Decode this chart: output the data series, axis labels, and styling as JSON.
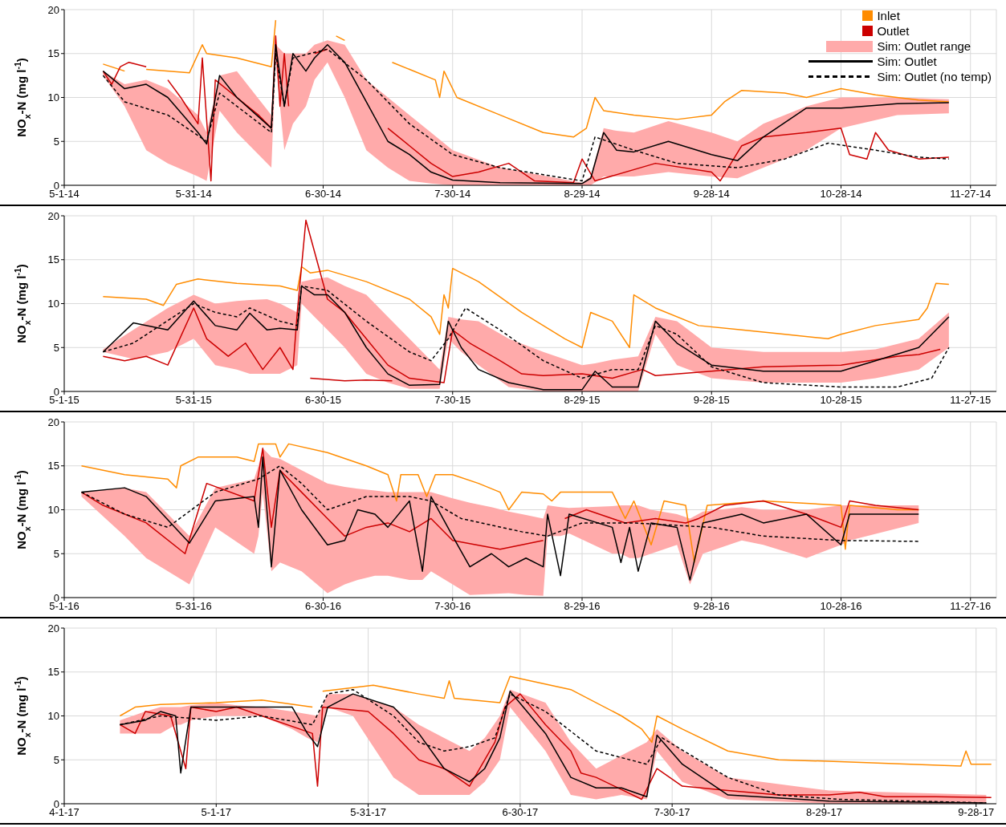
{
  "chart_data": [
    {
      "type": "line",
      "ylabel": "NO$_{x}$-N (mg l$^{-1}$)",
      "ylim": [
        0,
        20
      ],
      "yticks": [
        0,
        5,
        10,
        15,
        20
      ],
      "grid": true,
      "legend": "top right",
      "annotations": [
        "Sim: Outlet range"
      ],
      "xlim": [
        "2014-05-01",
        "2014-12-03"
      ],
      "xticks": [
        {
          "value": "2014-05-01",
          "label": "5-1-14"
        },
        {
          "value": "2014-05-31",
          "label": "5-31-14"
        },
        {
          "value": "2014-06-30",
          "label": "6-30-14"
        },
        {
          "value": "2014-07-30",
          "label": "7-30-14"
        },
        {
          "value": "2014-08-29",
          "label": "8-29-14"
        },
        {
          "value": "2014-09-28",
          "label": "9-28-14"
        },
        {
          "value": "2014-10-28",
          "label": "10-28-14"
        },
        {
          "value": "2014-11-27",
          "label": "11-27-14"
        }
      ],
      "series": [
        {
          "name": "Inlet",
          "color": "#ff8c00",
          "x": [
            "2014-05-10",
            "2014-05-15",
            "2014-05-16",
            "2014-05-20",
            "2014-05-30",
            "2014-06-02",
            "2014-06-03",
            "2014-06-10",
            "2014-06-18",
            "2014-06-19",
            "2014-06-20",
            "2014-07-03",
            "2014-07-05",
            "2014-07-06",
            "2014-07-16",
            "2014-07-26",
            "2014-07-27",
            "2014-07-28",
            "2014-07-31",
            "2014-08-10",
            "2014-08-20",
            "2014-08-27",
            "2014-08-30",
            "2014-09-01",
            "2014-09-03",
            "2014-09-10",
            "2014-09-20",
            "2014-09-28",
            "2014-10-01",
            "2014-10-05",
            "2014-10-15",
            "2014-10-20",
            "2014-10-28",
            "2014-11-05",
            "2014-11-15",
            "2014-11-22"
          ],
          "values": [
            13.8,
            13,
            null,
            13.2,
            12.8,
            16,
            15,
            14.5,
            13.5,
            18.8,
            null,
            17,
            16.5,
            null,
            14,
            12,
            10,
            13,
            10,
            8,
            6,
            5.5,
            6.5,
            10,
            8.5,
            8,
            7.5,
            8,
            9.5,
            10.8,
            10.5,
            10,
            11,
            10.3,
            9.7,
            9.5
          ]
        },
        {
          "name": "Outlet",
          "color": "#cc0000",
          "x": [
            "2014-05-10",
            "2014-05-12",
            "2014-05-14",
            "2014-05-16",
            "2014-05-20",
            "2014-05-22",
            "2014-05-25",
            "2014-05-28",
            "2014-06-01",
            "2014-06-02",
            "2014-06-04",
            "2014-06-05",
            "2014-06-10",
            "2014-06-15",
            "2014-06-18",
            "2014-06-19",
            "2014-06-20",
            "2014-06-21",
            "2014-06-22",
            "2014-06-24",
            "2014-06-28",
            "2014-07-01",
            "2014-07-03",
            "2014-07-15",
            "2014-07-20",
            "2014-07-25",
            "2014-07-30",
            "2014-08-05",
            "2014-08-12",
            "2014-08-18",
            "2014-08-27",
            "2014-08-29",
            "2014-09-01",
            "2014-09-15",
            "2014-09-28",
            "2014-09-30",
            "2014-10-05",
            "2014-10-10",
            "2014-10-20",
            "2014-10-28",
            "2014-10-30",
            "2014-11-03",
            "2014-11-05",
            "2014-11-08",
            "2014-11-15",
            "2014-11-22"
          ],
          "values": [
            13,
            11.5,
            13.5,
            14,
            13.5,
            null,
            12,
            10,
            7,
            14.5,
            0.5,
            12,
            10,
            8,
            6.5,
            17,
            9,
            15,
            9,
            null,
            15,
            15.5,
            null,
            6.5,
            4.5,
            2.5,
            1,
            1.5,
            2.5,
            0.5,
            0.3,
            3,
            0.5,
            2.5,
            1.5,
            0.5,
            4.5,
            5.5,
            6,
            6.5,
            3.5,
            3,
            6,
            4,
            3,
            3.2
          ]
        },
        {
          "name": "Sim: Outlet",
          "color": "#000000",
          "line_style": "solid",
          "x": [
            "2014-05-10",
            "2014-05-15",
            "2014-05-20",
            "2014-05-25",
            "2014-06-01",
            "2014-06-03",
            "2014-06-06",
            "2014-06-10",
            "2014-06-18",
            "2014-06-19",
            "2014-06-21",
            "2014-06-23",
            "2014-06-26",
            "2014-06-28",
            "2014-07-01",
            "2014-07-05",
            "2014-07-10",
            "2014-07-15",
            "2014-07-20",
            "2014-07-25",
            "2014-07-30",
            "2014-08-10",
            "2014-08-29",
            "2014-08-31",
            "2014-09-03",
            "2014-09-06",
            "2014-09-10",
            "2014-09-18",
            "2014-09-28",
            "2014-10-04",
            "2014-10-10",
            "2014-10-20",
            "2014-10-28",
            "2014-11-10",
            "2014-11-22"
          ],
          "values": [
            13,
            11,
            11.5,
            10,
            6,
            4.7,
            12.5,
            10,
            6.5,
            16,
            9,
            15,
            13,
            14.5,
            16,
            14,
            9.5,
            5,
            3.5,
            1.5,
            0.6,
            0.3,
            0.2,
            0.8,
            6,
            4,
            3.8,
            5,
            3.5,
            2.8,
            5.5,
            8.8,
            8.8,
            9.3,
            9.4
          ],
          "lower": [
            12.5,
            9,
            4,
            2.5,
            1,
            0.5,
            8.5,
            6,
            2,
            14,
            4,
            7,
            9,
            12,
            14,
            10,
            4,
            2,
            0.5,
            0.2,
            0,
            0,
            0,
            0,
            1,
            1,
            1,
            1.5,
            1,
            0.8,
            2,
            4,
            6.5,
            8,
            8.2
          ],
          "upper": [
            13,
            11.5,
            12,
            11,
            8,
            6,
            12.5,
            13,
            8,
            16,
            15,
            15,
            15,
            16,
            16.5,
            16,
            12,
            10,
            8,
            6,
            4,
            2,
            0.3,
            1,
            6.5,
            6.2,
            6,
            7.3,
            6,
            5,
            7,
            9,
            10,
            10,
            9.8
          ]
        },
        {
          "name": "Sim: Outlet (no temp)",
          "color": "#000000",
          "line_style": "dashed",
          "x": [
            "2014-05-10",
            "2014-05-15",
            "2014-05-25",
            "2014-06-03",
            "2014-06-06",
            "2014-06-18",
            "2014-06-19",
            "2014-06-21",
            "2014-06-23",
            "2014-07-01",
            "2014-07-10",
            "2014-07-20",
            "2014-07-30",
            "2014-08-10",
            "2014-08-29",
            "2014-09-01",
            "2014-09-10",
            "2014-09-20",
            "2014-10-04",
            "2014-10-15",
            "2014-10-25",
            "2014-11-05",
            "2014-11-15",
            "2014-11-22"
          ],
          "values": [
            12.5,
            9.5,
            8,
            5,
            10.5,
            6,
            15,
            9,
            14.5,
            15.5,
            12,
            7,
            3.5,
            2,
            0.5,
            5.5,
            4,
            2.5,
            2,
            3,
            4.8,
            4,
            3.2,
            3
          ]
        }
      ]
    },
    {
      "type": "line",
      "ylabel": "NO$_{x}$-N (mg l$^{-1}$)",
      "ylim": [
        0,
        20
      ],
      "yticks": [
        0,
        5,
        10,
        15,
        20
      ],
      "grid": true,
      "xlim": [
        "2015-05-01",
        "2015-12-03"
      ],
      "xticks": [
        {
          "value": "2015-05-01",
          "label": "5-1-15"
        },
        {
          "value": "2015-05-31",
          "label": "5-31-15"
        },
        {
          "value": "2015-06-30",
          "label": "6-30-15"
        },
        {
          "value": "2015-07-30",
          "label": "7-30-15"
        },
        {
          "value": "2015-08-29",
          "label": "8-29-15"
        },
        {
          "value": "2015-09-28",
          "label": "9-28-15"
        },
        {
          "value": "2015-10-28",
          "label": "10-28-15"
        },
        {
          "value": "2015-11-27",
          "label": "11-27-15"
        }
      ],
      "series": [
        {
          "color": "#ff8c00",
          "x": [
            "2015-05-10",
            "2015-05-20",
            "2015-05-24",
            "2015-05-27",
            "2015-06-01",
            "2015-06-10",
            "2015-06-20",
            "2015-06-24",
            "2015-06-25",
            "2015-06-27",
            "2015-07-01",
            "2015-07-10",
            "2015-07-20",
            "2015-07-25",
            "2015-07-27",
            "2015-07-28",
            "2015-07-29",
            "2015-07-30",
            "2015-08-05",
            "2015-08-15",
            "2015-08-25",
            "2015-08-29",
            "2015-08-31",
            "2015-09-05",
            "2015-09-09",
            "2015-09-10",
            "2015-09-15",
            "2015-09-25",
            "2015-10-05",
            "2015-10-15",
            "2015-10-25",
            "2015-10-28",
            "2015-11-05",
            "2015-11-15",
            "2015-11-17",
            "2015-11-19",
            "2015-11-22"
          ],
          "values": [
            10.8,
            10.5,
            9.8,
            12.2,
            12.8,
            12.3,
            12,
            11.5,
            14.2,
            13.5,
            13.8,
            12.5,
            10.5,
            8.5,
            6.5,
            11,
            9.5,
            14,
            12.5,
            9,
            6,
            5,
            9,
            8,
            5,
            11,
            9.5,
            7.5,
            7,
            6.5,
            6,
            6.5,
            7.5,
            8.2,
            9.5,
            12.3,
            12.2
          ]
        },
        {
          "color": "#cc0000",
          "x": [
            "2015-05-10",
            "2015-05-15",
            "2015-05-20",
            "2015-05-25",
            "2015-05-31",
            "2015-06-03",
            "2015-06-08",
            "2015-06-12",
            "2015-06-16",
            "2015-06-20",
            "2015-06-23",
            "2015-06-24",
            "2015-06-26",
            "2015-07-01",
            "2015-07-05",
            "2015-07-10",
            "2015-07-15",
            "2015-07-20",
            "2015-07-28",
            "2015-07-30",
            "2015-08-03",
            "2015-08-10",
            "2015-08-15",
            "2015-08-20",
            "2015-08-29",
            "2015-09-05",
            "2015-09-12",
            "2015-09-15",
            "2015-09-28",
            "2015-10-10",
            "2015-10-28",
            "2015-11-10",
            "2015-11-15",
            "2015-11-20"
          ],
          "values": [
            4,
            3.5,
            4,
            3,
            9.5,
            6,
            4,
            5.5,
            2.5,
            5,
            2.5,
            9,
            19.5,
            10.5,
            9,
            6,
            3,
            1.5,
            1,
            7,
            5.5,
            3.5,
            2,
            1.8,
            2,
            1.5,
            2.5,
            1.8,
            2.3,
            2.8,
            3,
            4,
            4.2,
            4.8
          ]
        },
        {
          "color": "#cc0000",
          "x": [
            "2015-06-27",
            "2015-07-05",
            "2015-07-10",
            "2015-07-16"
          ],
          "values": [
            1.5,
            1.2,
            1.3,
            1.2
          ]
        },
        {
          "color": "#000000",
          "line_style": "solid",
          "x": [
            "2015-05-10",
            "2015-05-17",
            "2015-05-25",
            "2015-05-31",
            "2015-06-05",
            "2015-06-10",
            "2015-06-13",
            "2015-06-17",
            "2015-06-20",
            "2015-06-24",
            "2015-06-25",
            "2015-06-28",
            "2015-07-01",
            "2015-07-05",
            "2015-07-10",
            "2015-07-15",
            "2015-07-20",
            "2015-07-27",
            "2015-07-29",
            "2015-08-01",
            "2015-08-05",
            "2015-08-12",
            "2015-08-20",
            "2015-08-29",
            "2015-09-01",
            "2015-09-05",
            "2015-09-11",
            "2015-09-15",
            "2015-09-20",
            "2015-09-28",
            "2015-10-10",
            "2015-10-28",
            "2015-11-05",
            "2015-11-15",
            "2015-11-22"
          ],
          "values": [
            4.5,
            7.8,
            7,
            10.3,
            7.5,
            7,
            8.9,
            7,
            7.2,
            7,
            12,
            11,
            11,
            9,
            5,
            2,
            0.7,
            0.8,
            8,
            5,
            2.5,
            1,
            0.2,
            0.2,
            2.3,
            0.5,
            0.5,
            8,
            5.5,
            3,
            2.3,
            2.3,
            3.5,
            5,
            8.5
          ],
          "lower": [
            4.5,
            3.7,
            4.5,
            6,
            3,
            2.5,
            2,
            2,
            2,
            3,
            10,
            8.5,
            7,
            5,
            2,
            1,
            0.3,
            0.3,
            6,
            4.5,
            3,
            0.5,
            0,
            0,
            0,
            0,
            0,
            6.5,
            3,
            1.5,
            1,
            1,
            1.5,
            2.5,
            5
          ],
          "upper": [
            4.8,
            7,
            9.5,
            11,
            10,
            10.3,
            10.4,
            10.5,
            10,
            9,
            12.5,
            12.8,
            13,
            12,
            11,
            8.5,
            6,
            2.5,
            8.5,
            8.2,
            8,
            6,
            4.5,
            3,
            3.2,
            3.6,
            4,
            8.5,
            8,
            5,
            4.5,
            4.5,
            4.8,
            6,
            9
          ]
        },
        {
          "color": "#000000",
          "line_style": "dashed",
          "x": [
            "2015-05-10",
            "2015-05-17",
            "2015-05-31",
            "2015-06-05",
            "2015-06-10",
            "2015-06-13",
            "2015-06-20",
            "2015-06-24",
            "2015-06-25",
            "2015-07-01",
            "2015-07-10",
            "2015-07-20",
            "2015-07-25",
            "2015-07-29",
            "2015-08-02",
            "2015-08-10",
            "2015-08-20",
            "2015-08-29",
            "2015-09-05",
            "2015-09-11",
            "2015-09-15",
            "2015-09-20",
            "2015-09-28",
            "2015-10-10",
            "2015-10-28",
            "2015-11-10",
            "2015-11-18",
            "2015-11-22"
          ],
          "values": [
            4.5,
            5.5,
            10,
            9,
            8.5,
            9.5,
            8,
            7.5,
            12,
            11.5,
            8,
            4.5,
            3.5,
            6,
            9.5,
            7,
            3.5,
            1.5,
            2.5,
            2.5,
            7.5,
            6.5,
            2.8,
            1,
            0.5,
            0.5,
            1.5,
            5
          ]
        }
      ]
    },
    {
      "type": "line",
      "ylabel": "NO$_{x}$-N (mg l$^{-1}$)",
      "ylim": [
        0,
        20
      ],
      "yticks": [
        0,
        5,
        10,
        15,
        20
      ],
      "grid": true,
      "xlim": [
        "2016-05-01",
        "2016-12-03"
      ],
      "xticks": [
        {
          "value": "2016-05-01",
          "label": "5-1-16"
        },
        {
          "value": "2016-05-31",
          "label": "5-31-16"
        },
        {
          "value": "2016-06-30",
          "label": "6-30-16"
        },
        {
          "value": "2016-07-30",
          "label": "7-30-16"
        },
        {
          "value": "2016-08-29",
          "label": "8-29-16"
        },
        {
          "value": "2016-09-28",
          "label": "9-28-16"
        },
        {
          "value": "2016-10-28",
          "label": "10-28-16"
        },
        {
          "value": "2016-11-27",
          "label": "11-27-16"
        }
      ],
      "series": [
        {
          "color": "#ff8c00",
          "x": [
            "2016-05-05",
            "2016-05-15",
            "2016-05-25",
            "2016-05-27",
            "2016-05-28",
            "2016-06-01",
            "2016-06-10",
            "2016-06-14",
            "2016-06-15",
            "2016-06-19",
            "2016-06-20",
            "2016-06-22",
            "2016-07-01",
            "2016-07-10",
            "2016-07-15",
            "2016-07-17",
            "2016-07-18",
            "2016-07-22",
            "2016-07-24",
            "2016-07-26",
            "2016-07-30",
            "2016-08-05",
            "2016-08-10",
            "2016-08-12",
            "2016-08-15",
            "2016-08-20",
            "2016-08-22",
            "2016-08-24",
            "2016-09-05",
            "2016-09-08",
            "2016-09-10",
            "2016-09-14",
            "2016-09-17",
            "2016-09-22",
            "2016-09-24",
            "2016-09-27",
            "2016-10-10",
            "2016-10-28",
            "2016-10-29",
            "2016-10-30",
            "2016-11-10",
            "2016-11-15"
          ],
          "values": [
            15,
            14,
            13.5,
            12.5,
            15,
            16,
            16,
            15.5,
            17.5,
            17.5,
            16,
            17.5,
            16.5,
            15,
            14,
            11,
            14,
            14,
            11.5,
            14,
            14,
            13,
            12,
            10,
            12,
            11.8,
            11,
            12,
            12,
            9,
            11,
            6,
            11,
            10.5,
            4,
            10.5,
            11,
            10.5,
            5.5,
            10.5,
            10,
            10
          ]
        },
        {
          "color": "#cc0000",
          "x": [
            "2016-05-05",
            "2016-05-10",
            "2016-05-20",
            "2016-05-29",
            "2016-06-03",
            "2016-06-14",
            "2016-06-16",
            "2016-06-18",
            "2016-06-20",
            "2016-06-25",
            "2016-07-01",
            "2016-07-05",
            "2016-07-10",
            "2016-07-15",
            "2016-07-20",
            "2016-07-25",
            "2016-07-30",
            "2016-08-10",
            "2016-08-20",
            "2016-08-22",
            "2016-08-25",
            "2016-08-30",
            "2016-09-05",
            "2016-09-08",
            "2016-09-15",
            "2016-09-22",
            "2016-09-25",
            "2016-10-01",
            "2016-10-10",
            "2016-10-20",
            "2016-10-28",
            "2016-10-30",
            "2016-11-05",
            "2016-11-15"
          ],
          "values": [
            12,
            10.5,
            8.5,
            5,
            13,
            11,
            17,
            8,
            14.5,
            12,
            9,
            7,
            8,
            8.5,
            7.5,
            9,
            6.5,
            5.5,
            6.5,
            null,
            9,
            10,
            9,
            8.5,
            9,
            8.5,
            9,
            10.5,
            11,
            9.5,
            8,
            11,
            10.5,
            10
          ]
        },
        {
          "color": "#000000",
          "line_style": "solid",
          "x": [
            "2016-05-05",
            "2016-05-15",
            "2016-05-20",
            "2016-05-30",
            "2016-06-05",
            "2016-06-14",
            "2016-06-15",
            "2016-06-16",
            "2016-06-18",
            "2016-06-20",
            "2016-06-25",
            "2016-07-01",
            "2016-07-05",
            "2016-07-08",
            "2016-07-12",
            "2016-07-15",
            "2016-07-20",
            "2016-07-23",
            "2016-07-25",
            "2016-07-30",
            "2016-08-03",
            "2016-08-08",
            "2016-08-12",
            "2016-08-16",
            "2016-08-20",
            "2016-08-21",
            "2016-08-24",
            "2016-08-26",
            "2016-09-05",
            "2016-09-07",
            "2016-09-09",
            "2016-09-11",
            "2016-09-14",
            "2016-09-20",
            "2016-09-23",
            "2016-09-26",
            "2016-10-05",
            "2016-10-10",
            "2016-10-20",
            "2016-10-28",
            "2016-10-30",
            "2016-11-15"
          ],
          "values": [
            12,
            12.5,
            11.5,
            6.2,
            11,
            11.5,
            8,
            16,
            3.5,
            14.5,
            10,
            6,
            6.5,
            10,
            9.5,
            8,
            11,
            3,
            11.5,
            7,
            3.5,
            5,
            3.5,
            4.5,
            3.5,
            9.5,
            2.5,
            9.5,
            8,
            4,
            8,
            3,
            8.5,
            8,
            2,
            8.5,
            9.5,
            8.5,
            9.5,
            6,
            9.5,
            9.5
          ],
          "lower": [
            11.5,
            7,
            4.5,
            1.5,
            8,
            5,
            7,
            12,
            3,
            4,
            3,
            0.5,
            1.5,
            2,
            2.5,
            2.5,
            2,
            2,
            3,
            1.5,
            0.3,
            0.4,
            0.5,
            0.3,
            0.2,
            7,
            7,
            7.3,
            5,
            5,
            4.5,
            4.5,
            5,
            6,
            1.5,
            5,
            6.5,
            6,
            4.5,
            6,
            6.5,
            8.5
          ],
          "upper": [
            12,
            12.5,
            12,
            7,
            12.5,
            13.5,
            15,
            17,
            16,
            15.8,
            14.5,
            13,
            12.6,
            12.4,
            12.2,
            12,
            12,
            12,
            12,
            11.3,
            10.8,
            10.3,
            9.8,
            9.4,
            9,
            10.5,
            10.3,
            10.2,
            10.4,
            10.5,
            10.5,
            10.5,
            10,
            9.5,
            9,
            9.8,
            10.3,
            10,
            10,
            10.5,
            10.5,
            10.5
          ]
        },
        {
          "color": "#000000",
          "line_style": "dashed",
          "x": [
            "2016-05-05",
            "2016-05-15",
            "2016-05-25",
            "2016-06-05",
            "2016-06-15",
            "2016-06-20",
            "2016-06-25",
            "2016-07-01",
            "2016-07-10",
            "2016-07-20",
            "2016-07-25",
            "2016-08-01",
            "2016-08-15",
            "2016-08-21",
            "2016-08-29",
            "2016-09-10",
            "2016-09-28",
            "2016-10-10",
            "2016-10-28",
            "2016-11-15"
          ],
          "values": [
            12,
            9.5,
            8,
            12,
            13.5,
            15,
            13,
            10,
            11.5,
            11.5,
            11,
            9,
            7.5,
            7,
            8.5,
            8.5,
            8,
            7,
            6.5,
            6.4
          ]
        }
      ]
    },
    {
      "type": "line",
      "ylabel": "NO$_{x}$-N (mg l$^{-1}$)",
      "ylim": [
        0,
        20
      ],
      "yticks": [
        0,
        5,
        10,
        15,
        20
      ],
      "grid": true,
      "xlim": [
        "2017-04-01",
        "2017-10-02"
      ],
      "xticks": [
        {
          "value": "2017-04-01",
          "label": "4-1-17"
        },
        {
          "value": "2017-05-01",
          "label": "5-1-17"
        },
        {
          "value": "2017-05-31",
          "label": "5-31-17"
        },
        {
          "value": "2017-06-30",
          "label": "6-30-17"
        },
        {
          "value": "2017-07-30",
          "label": "7-30-17"
        },
        {
          "value": "2017-08-29",
          "label": "8-29-17"
        },
        {
          "value": "2017-09-28",
          "label": "9-28-17"
        }
      ],
      "series": [
        {
          "color": "#ff8c00",
          "x": [
            "2017-04-12",
            "2017-04-15",
            "2017-04-20",
            "2017-05-01",
            "2017-05-10",
            "2017-05-20",
            "2017-05-21",
            "2017-05-22",
            "2017-06-01",
            "2017-06-10",
            "2017-06-15",
            "2017-06-16",
            "2017-06-17",
            "2017-06-26",
            "2017-06-28",
            "2017-07-10",
            "2017-07-20",
            "2017-07-24",
            "2017-07-26",
            "2017-07-27",
            "2017-08-01",
            "2017-08-10",
            "2017-08-20",
            "2017-09-01",
            "2017-09-15",
            "2017-09-25",
            "2017-09-26",
            "2017-09-27",
            "2017-10-01"
          ],
          "values": [
            10,
            11,
            11.3,
            11.5,
            11.8,
            11,
            null,
            12.8,
            13.5,
            12.5,
            12,
            14,
            12,
            11.5,
            14.5,
            13,
            10,
            8.5,
            7,
            10,
            8.5,
            6,
            5,
            4.8,
            4.5,
            4.3,
            6,
            4.5,
            4.5
          ]
        },
        {
          "color": "#cc0000",
          "x": [
            "2017-04-12",
            "2017-04-15",
            "2017-04-17",
            "2017-04-22",
            "2017-04-25",
            "2017-04-26",
            "2017-05-01",
            "2017-05-05",
            "2017-05-10",
            "2017-05-20",
            "2017-05-21",
            "2017-05-22",
            "2017-05-31",
            "2017-06-05",
            "2017-06-10",
            "2017-06-15",
            "2017-06-20",
            "2017-06-25",
            "2017-06-27",
            "2017-06-30",
            "2017-07-05",
            "2017-07-10",
            "2017-07-12",
            "2017-07-15",
            "2017-07-24",
            "2017-07-27",
            "2017-08-01",
            "2017-08-10",
            "2017-08-20",
            "2017-08-30",
            "2017-09-05",
            "2017-09-10",
            "2017-09-20",
            "2017-10-01"
          ],
          "values": [
            9,
            8,
            10.5,
            10,
            4,
            11,
            10.5,
            11,
            10,
            8,
            2,
            11,
            10.5,
            8,
            5,
            4,
            2,
            7,
            11,
            12.5,
            9,
            6,
            3.5,
            3,
            0.5,
            4,
            2,
            1.5,
            1,
            1,
            1.3,
            0.8,
            0.8,
            0.7
          ]
        },
        {
          "color": "#000000",
          "line_style": "solid",
          "x": [
            "2017-04-12",
            "2017-04-17",
            "2017-04-20",
            "2017-04-23",
            "2017-04-24",
            "2017-04-26",
            "2017-05-01",
            "2017-05-05",
            "2017-05-10",
            "2017-05-16",
            "2017-05-19",
            "2017-05-21",
            "2017-05-23",
            "2017-05-28",
            "2017-06-05",
            "2017-06-10",
            "2017-06-15",
            "2017-06-20",
            "2017-06-23",
            "2017-06-26",
            "2017-06-28",
            "2017-07-05",
            "2017-07-10",
            "2017-07-15",
            "2017-07-20",
            "2017-07-25",
            "2017-07-27",
            "2017-08-01",
            "2017-08-10",
            "2017-08-30",
            "2017-09-30"
          ],
          "values": [
            9,
            9.5,
            10.5,
            10,
            3.5,
            11,
            11,
            11,
            11,
            11,
            8,
            6.5,
            11,
            12.5,
            11,
            8,
            4,
            2.5,
            4,
            7.5,
            12.8,
            8,
            3,
            1.8,
            1.8,
            0.8,
            7.8,
            4.5,
            1,
            0.3,
            0.1
          ],
          "lower": [
            8,
            8,
            8,
            9,
            9,
            9.5,
            10,
            10,
            10,
            8.5,
            7.5,
            7,
            11,
            10,
            3,
            1,
            1,
            1,
            2.5,
            5,
            11,
            6,
            1,
            0.5,
            1,
            0.5,
            6,
            2.5,
            0.5,
            0,
            0
          ],
          "upper": [
            9.5,
            10.5,
            11,
            11,
            11,
            11.2,
            11.5,
            11.2,
            11,
            10.5,
            10.2,
            10,
            12.5,
            12.5,
            11,
            9,
            7.5,
            6,
            7.5,
            10,
            13,
            11.5,
            7,
            4,
            5.5,
            7,
            8.5,
            6,
            3,
            1.5,
            1
          ]
        },
        {
          "color": "#000000",
          "line_style": "dashed",
          "x": [
            "2017-04-12",
            "2017-04-20",
            "2017-05-01",
            "2017-05-10",
            "2017-05-20",
            "2017-05-23",
            "2017-05-28",
            "2017-06-05",
            "2017-06-10",
            "2017-06-15",
            "2017-06-20",
            "2017-06-25",
            "2017-06-28",
            "2017-07-05",
            "2017-07-15",
            "2017-07-25",
            "2017-07-28",
            "2017-08-10",
            "2017-08-20",
            "2017-09-01",
            "2017-09-30"
          ],
          "values": [
            9,
            10,
            9.5,
            10,
            9,
            12.5,
            13,
            10,
            7,
            6,
            6.5,
            7.5,
            12.5,
            10.5,
            6,
            4.5,
            7.5,
            3,
            1,
            0.5,
            0.1
          ]
        }
      ]
    }
  ]
}
